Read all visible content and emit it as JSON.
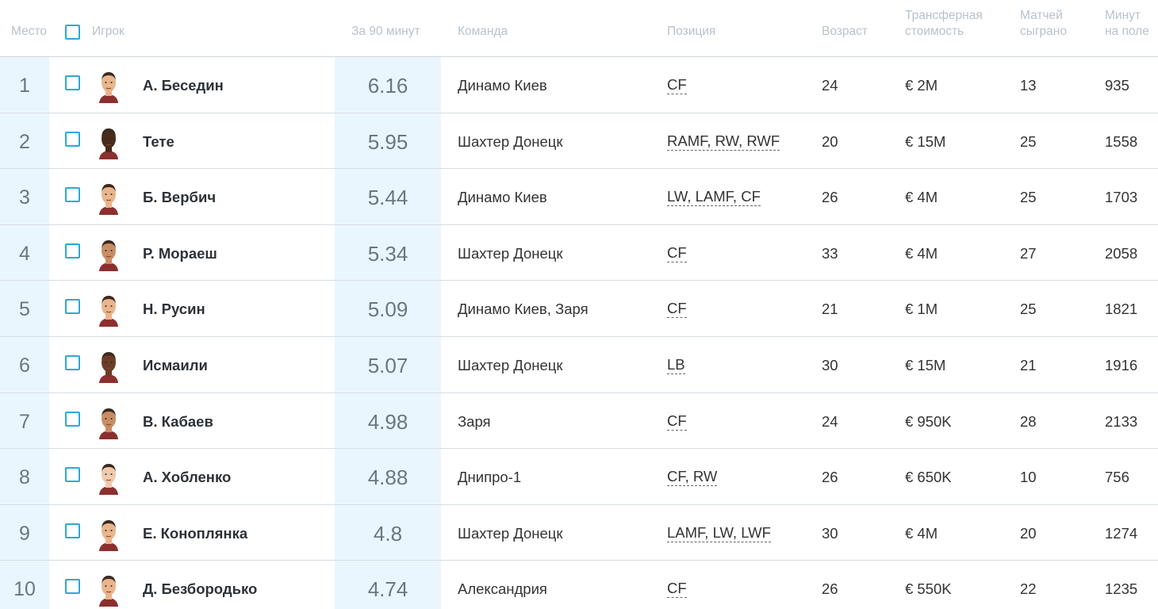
{
  "header": {
    "rank": "Место",
    "player": "Игрок",
    "per90": "За 90 минут",
    "team": "Команда",
    "position": "Позиция",
    "age": "Возраст",
    "transfer_line1": "Трансферная",
    "transfer_line2": "стоимость",
    "matches_line1": "Матчей",
    "matches_line2": "сыграно",
    "minutes_line1": "Минут",
    "minutes_line2": "на поле"
  },
  "rows": [
    {
      "rank": "1",
      "name": "А. Беседин",
      "per90": "6.16",
      "team": "Динамо Киев",
      "position": "CF",
      "age": "24",
      "value": "€ 2M",
      "matches": "13",
      "minutes": "935",
      "avatar": "player-avatar"
    },
    {
      "rank": "2",
      "name": "Тете",
      "per90": "5.95",
      "team": "Шахтер Донецк",
      "position": "RAMF, RW, RWF",
      "age": "20",
      "value": "€ 15M",
      "matches": "25",
      "minutes": "1558",
      "avatar": "player-avatar"
    },
    {
      "rank": "3",
      "name": "Б. Вербич",
      "per90": "5.44",
      "team": "Динамо Киев",
      "position": "LW, LAMF, CF",
      "age": "26",
      "value": "€ 4M",
      "matches": "25",
      "minutes": "1703",
      "avatar": "player-avatar"
    },
    {
      "rank": "4",
      "name": "Р. Мораеш",
      "per90": "5.34",
      "team": "Шахтер Донецк",
      "position": "CF",
      "age": "33",
      "value": "€ 4M",
      "matches": "27",
      "minutes": "2058",
      "avatar": "player-avatar"
    },
    {
      "rank": "5",
      "name": "Н. Русин",
      "per90": "5.09",
      "team": "Динамо Киев, Заря",
      "position": "CF",
      "age": "21",
      "value": "€ 1M",
      "matches": "25",
      "minutes": "1821",
      "avatar": "player-avatar"
    },
    {
      "rank": "6",
      "name": "Исмаили",
      "per90": "5.07",
      "team": "Шахтер Донецк",
      "position": "LB",
      "age": "30",
      "value": "€ 15M",
      "matches": "21",
      "minutes": "1916",
      "avatar": "player-avatar"
    },
    {
      "rank": "7",
      "name": "В. Кабаев",
      "per90": "4.98",
      "team": "Заря",
      "position": "CF",
      "age": "24",
      "value": "€ 950K",
      "matches": "28",
      "minutes": "2133",
      "avatar": "player-avatar"
    },
    {
      "rank": "8",
      "name": "А. Хобленко",
      "per90": "4.88",
      "team": "Днипро-1",
      "position": "CF, RW",
      "age": "26",
      "value": "€ 650K",
      "matches": "10",
      "minutes": "756",
      "avatar": "player-avatar"
    },
    {
      "rank": "9",
      "name": "Е. Коноплянка",
      "per90": "4.8",
      "team": "Шахтер Донецк",
      "position": "LAMF, LW, LWF",
      "age": "30",
      "value": "€ 4M",
      "matches": "20",
      "minutes": "1274",
      "avatar": "player-avatar"
    },
    {
      "rank": "10",
      "name": "Д. Безбородько",
      "per90": "4.74",
      "team": "Александрия",
      "position": "CF",
      "age": "26",
      "value": "€ 550K",
      "matches": "22",
      "minutes": "1235",
      "avatar": "player-avatar"
    }
  ],
  "colors": {
    "accent": "#2ea7dc",
    "highlight_column": "#eaf6fd",
    "header_text": "#b9c2c9"
  }
}
